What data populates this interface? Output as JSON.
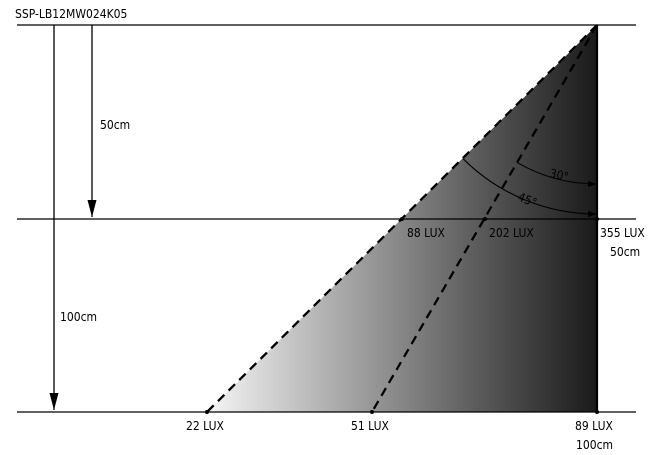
{
  "model": "SSP-LB12MW024K05",
  "distances": {
    "first": "50cm",
    "second": "100cm"
  },
  "angles": {
    "inner": "30°",
    "outer": "45°"
  },
  "lux_at_50cm": {
    "edge_45": "88 LUX",
    "edge_30": "202 LUX",
    "center": "355 LUX",
    "center_distance": "50cm"
  },
  "lux_at_100cm": {
    "edge_45": "22 LUX",
    "edge_30": "51 LUX",
    "center": "89 LUX",
    "center_distance": "100cm"
  },
  "colors": {
    "beam_dark": "#1a1a1a",
    "beam_light": "#ffffff",
    "lines": "#000000"
  }
}
